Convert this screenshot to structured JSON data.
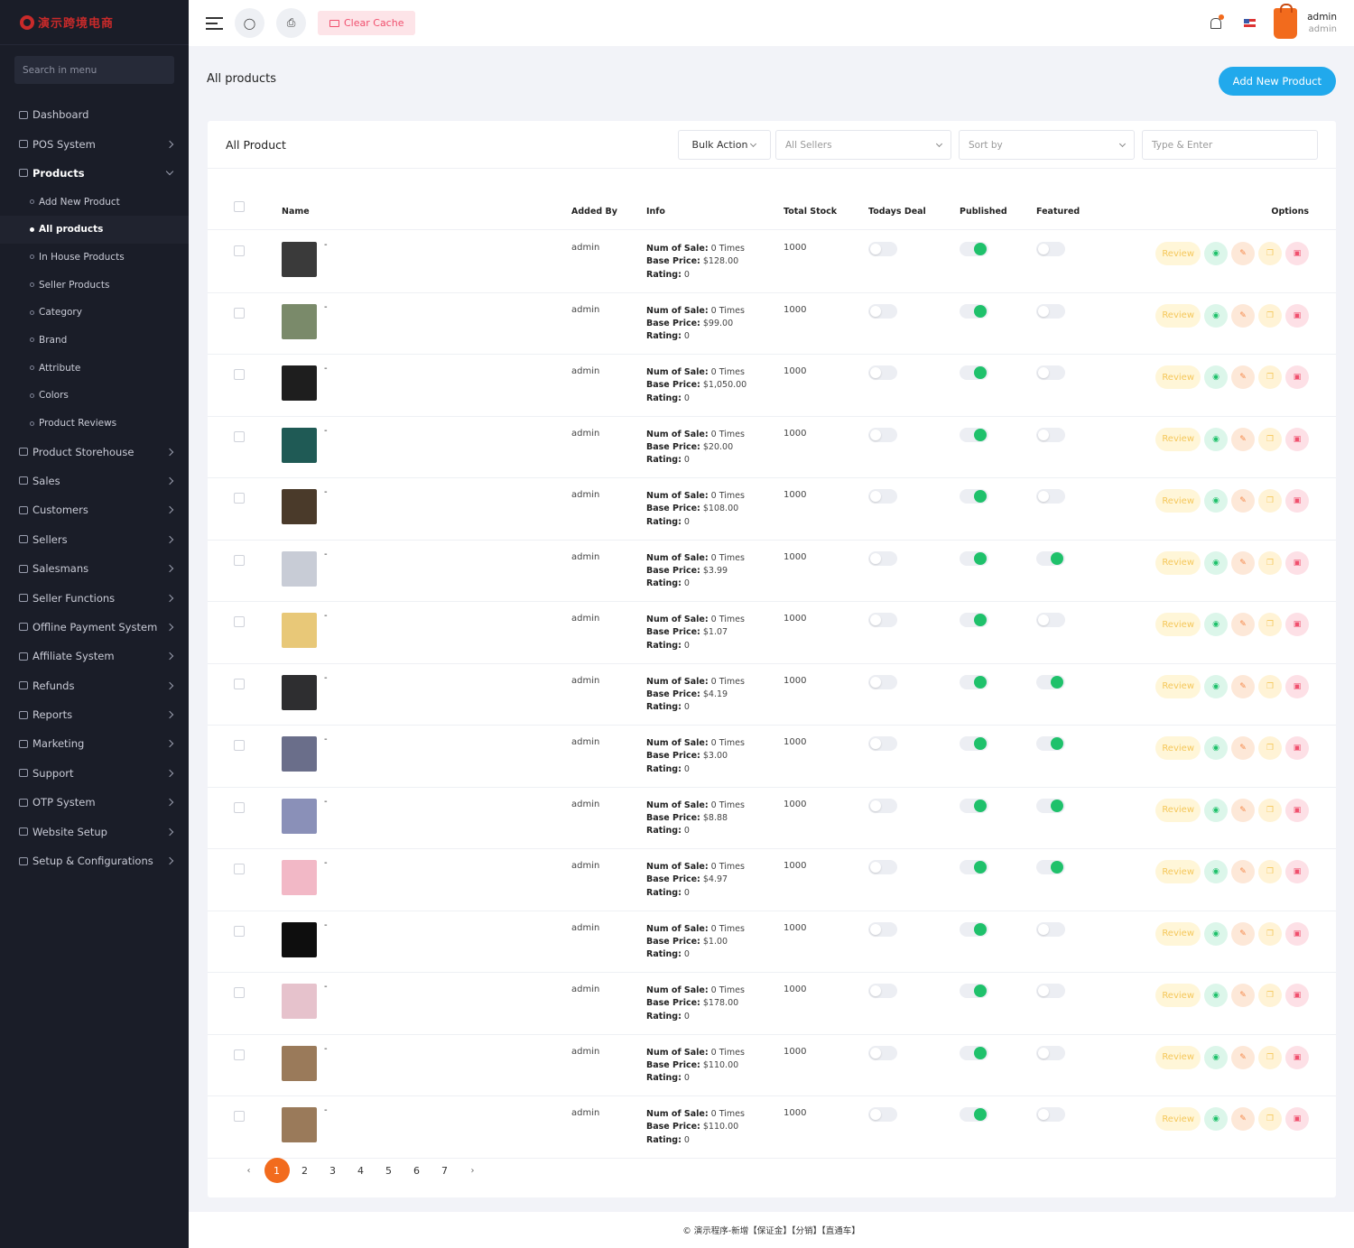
{
  "app": {
    "logo_text": "演示跨境电商"
  },
  "sidebar": {
    "search_placeholder": "Search in menu",
    "items_top": [
      {
        "label": "Dashboard",
        "chevron": false
      },
      {
        "label": "POS System",
        "chevron": true
      },
      {
        "label": "Products",
        "chevron": true,
        "open": true
      }
    ],
    "products_sub": [
      {
        "label": "Add New Product"
      },
      {
        "label": "All products",
        "active": true
      },
      {
        "label": "In House Products"
      },
      {
        "label": "Seller Products"
      },
      {
        "label": "Category"
      },
      {
        "label": "Brand"
      },
      {
        "label": "Attribute"
      },
      {
        "label": "Colors"
      },
      {
        "label": "Product Reviews"
      }
    ],
    "items_bottom": [
      {
        "label": "Product Storehouse"
      },
      {
        "label": "Sales"
      },
      {
        "label": "Customers"
      },
      {
        "label": "Sellers"
      },
      {
        "label": "Salesmans"
      },
      {
        "label": "Seller Functions"
      },
      {
        "label": "Offline Payment System"
      },
      {
        "label": "Affiliate System"
      },
      {
        "label": "Refunds"
      },
      {
        "label": "Reports"
      },
      {
        "label": "Marketing"
      },
      {
        "label": "Support"
      },
      {
        "label": "OTP System"
      },
      {
        "label": "Website Setup"
      },
      {
        "label": "Setup & Configurations"
      }
    ]
  },
  "topbar": {
    "clear_cache": "Clear Cache",
    "user_name": "admin",
    "user_role": "admin"
  },
  "page": {
    "title": "All products",
    "add_new": "Add New Product"
  },
  "card": {
    "title": "All Product",
    "bulk_action": "Bulk Action",
    "sellers_select": "All Sellers",
    "sort_select": "Sort by",
    "search_placeholder": "Type & Enter"
  },
  "table": {
    "headers": {
      "name": "Name",
      "added_by": "Added By",
      "info": "Info",
      "total_stock": "Total Stock",
      "todays_deal": "Todays Deal",
      "published": "Published",
      "featured": "Featured",
      "options": "Options"
    },
    "info_labels": {
      "sale": "Num of Sale:",
      "price": "Base Price:",
      "rating": "Rating:",
      "times": "Times"
    },
    "review_label": "Review",
    "rows": [
      {
        "name": "-",
        "added_by": "admin",
        "sales": "0",
        "price": "$128.00",
        "rating": "0",
        "stock": "1000",
        "deal": false,
        "published": true,
        "featured": false,
        "thumb": "#3a3a3a"
      },
      {
        "name": "-",
        "added_by": "admin",
        "sales": "0",
        "price": "$99.00",
        "rating": "0",
        "stock": "1000",
        "deal": false,
        "published": true,
        "featured": false,
        "thumb": "#7a8a6a"
      },
      {
        "name": "-",
        "added_by": "admin",
        "sales": "0",
        "price": "$1,050.00",
        "rating": "0",
        "stock": "1000",
        "deal": false,
        "published": true,
        "featured": false,
        "thumb": "#1e1e1e"
      },
      {
        "name": "-",
        "added_by": "admin",
        "sales": "0",
        "price": "$20.00",
        "rating": "0",
        "stock": "1000",
        "deal": false,
        "published": true,
        "featured": false,
        "thumb": "#1f5a55"
      },
      {
        "name": "-",
        "added_by": "admin",
        "sales": "0",
        "price": "$108.00",
        "rating": "0",
        "stock": "1000",
        "deal": false,
        "published": true,
        "featured": false,
        "thumb": "#4a3a2a"
      },
      {
        "name": "-",
        "added_by": "admin",
        "sales": "0",
        "price": "$3.99",
        "rating": "0",
        "stock": "1000",
        "deal": false,
        "published": true,
        "featured": true,
        "thumb": "#c8ccd6"
      },
      {
        "name": "-",
        "added_by": "admin",
        "sales": "0",
        "price": "$1.07",
        "rating": "0",
        "stock": "1000",
        "deal": false,
        "published": true,
        "featured": false,
        "thumb": "#e8c878"
      },
      {
        "name": "-",
        "added_by": "admin",
        "sales": "0",
        "price": "$4.19",
        "rating": "0",
        "stock": "1000",
        "deal": false,
        "published": true,
        "featured": true,
        "thumb": "#2e2e30"
      },
      {
        "name": "-",
        "added_by": "admin",
        "sales": "0",
        "price": "$3.00",
        "rating": "0",
        "stock": "1000",
        "deal": false,
        "published": true,
        "featured": true,
        "thumb": "#6a6e8a"
      },
      {
        "name": "-",
        "added_by": "admin",
        "sales": "0",
        "price": "$8.88",
        "rating": "0",
        "stock": "1000",
        "deal": false,
        "published": true,
        "featured": true,
        "thumb": "#8a90b8"
      },
      {
        "name": "-",
        "added_by": "admin",
        "sales": "0",
        "price": "$4.97",
        "rating": "0",
        "stock": "1000",
        "deal": false,
        "published": true,
        "featured": true,
        "thumb": "#f2b8c6"
      },
      {
        "name": "-",
        "added_by": "admin",
        "sales": "0",
        "price": "$1.00",
        "rating": "0",
        "stock": "1000",
        "deal": false,
        "published": true,
        "featured": false,
        "thumb": "#0e0e0e"
      },
      {
        "name": "-",
        "added_by": "admin",
        "sales": "0",
        "price": "$178.00",
        "rating": "0",
        "stock": "1000",
        "deal": false,
        "published": true,
        "featured": false,
        "thumb": "#e6c2cc"
      },
      {
        "name": "-",
        "added_by": "admin",
        "sales": "0",
        "price": "$110.00",
        "rating": "0",
        "stock": "1000",
        "deal": false,
        "published": true,
        "featured": false,
        "thumb": "#9a7a5a"
      },
      {
        "name": "-",
        "added_by": "admin",
        "sales": "0",
        "price": "$110.00",
        "rating": "0",
        "stock": "1000",
        "deal": false,
        "published": true,
        "featured": false,
        "thumb": "#9a7a5a"
      }
    ]
  },
  "pagination": {
    "prev": "‹",
    "next": "›",
    "pages": [
      "1",
      "2",
      "3",
      "4",
      "5",
      "6",
      "7"
    ],
    "active": "1"
  },
  "footer": {
    "text": "© 演示程序-新增【保证金】【分销】【直通车】"
  }
}
